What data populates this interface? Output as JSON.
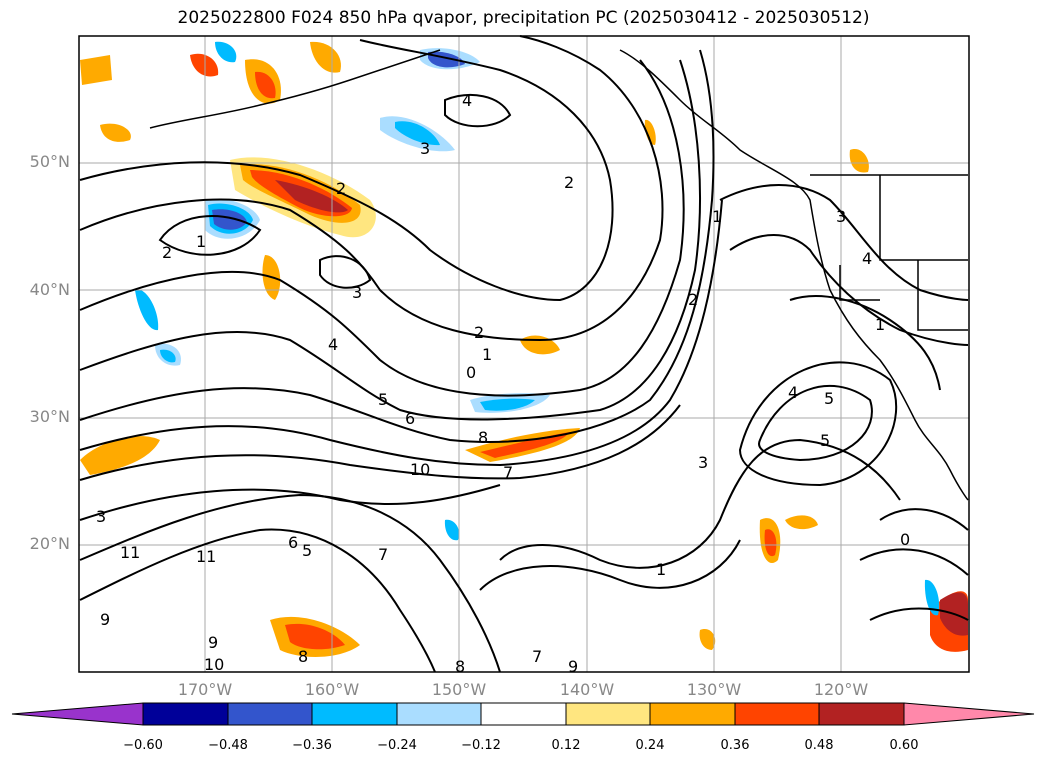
{
  "title": "2025022800 F024 850 hPa qvapor, precipitation PC (2025030412 - 2025030512)",
  "map": {
    "lat_labels": [
      "50°N",
      "40°N",
      "30°N",
      "20°N"
    ],
    "lon_labels": [
      "170°W",
      "160°W",
      "150°W",
      "140°W",
      "130°W",
      "120°W"
    ],
    "contour_labels": [
      "4",
      "3",
      "2",
      "1",
      "2",
      "3",
      "4",
      "2",
      "1",
      "0",
      "5",
      "6",
      "8",
      "10",
      "7",
      "11",
      "9",
      "3",
      "5",
      "4",
      "1",
      "2",
      "6",
      "5",
      "9",
      "10",
      "11",
      "8",
      "7",
      "9",
      "8",
      "7",
      "1",
      "3",
      "2",
      "1",
      "0",
      "3",
      "4",
      "5"
    ]
  },
  "colorbar": {
    "tick_labels": [
      "−0.60",
      "−0.48",
      "−0.36",
      "−0.24",
      "−0.12",
      "0.12",
      "0.24",
      "0.36",
      "0.48",
      "0.60"
    ],
    "colors": [
      "#9933cc",
      "#000099",
      "#3355cc",
      "#00bbff",
      "#aaddff",
      "#ffffff",
      "#ffe680",
      "#ffaa00",
      "#ff4400",
      "#b22222",
      "#ff88aa"
    ]
  }
}
